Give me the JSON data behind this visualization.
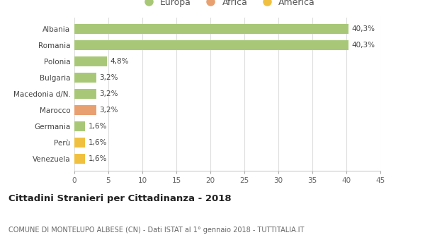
{
  "categories": [
    "Venezuela",
    "Perù",
    "Germania",
    "Marocco",
    "Macedonia d/N.",
    "Bulgaria",
    "Polonia",
    "Romania",
    "Albania"
  ],
  "values": [
    1.6,
    1.6,
    1.6,
    3.2,
    3.2,
    3.2,
    4.8,
    40.3,
    40.3
  ],
  "labels": [
    "1,6%",
    "1,6%",
    "1,6%",
    "3,2%",
    "3,2%",
    "3,2%",
    "4,8%",
    "40,3%",
    "40,3%"
  ],
  "colors": [
    "#f0c040",
    "#f0c040",
    "#a8c878",
    "#e8a070",
    "#a8c878",
    "#a8c878",
    "#a8c878",
    "#a8c878",
    "#a8c878"
  ],
  "legend_labels": [
    "Europa",
    "Africa",
    "America"
  ],
  "legend_colors": [
    "#a8c878",
    "#e8a070",
    "#f0c040"
  ],
  "title": "Cittadini Stranieri per Cittadinanza - 2018",
  "subtitle": "COMUNE DI MONTELUPO ALBESE (CN) - Dati ISTAT al 1° gennaio 2018 - TUTTITALIA.IT",
  "xlim": [
    0,
    45
  ],
  "xticks": [
    0,
    5,
    10,
    15,
    20,
    25,
    30,
    35,
    40,
    45
  ],
  "background_color": "#ffffff",
  "grid_color": "#dddddd",
  "bar_height": 0.6
}
